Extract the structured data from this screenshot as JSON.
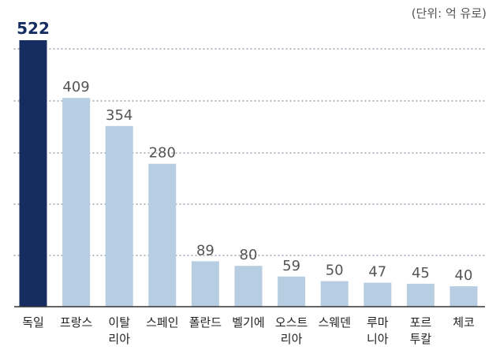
{
  "unit_label": "(단위: 억 유로)",
  "colors": {
    "highlight": "#162d62",
    "bar": "#b7cde2",
    "grid": "#9aa5b3",
    "axis": "#333333",
    "value_text": "#555555",
    "highlight_text": "#162d62",
    "category_text": "#222222"
  },
  "chart_data": {
    "type": "bar",
    "title": "",
    "xlabel": "",
    "ylabel": "",
    "unit": "(단위: 억 유로)",
    "ylim": [
      0,
      522
    ],
    "grid": "horizontal dotted",
    "highlight_index": 0,
    "categories": [
      [
        "독일"
      ],
      [
        "프랑스"
      ],
      [
        "이탈",
        "리아"
      ],
      [
        "스페인"
      ],
      [
        "폴란드"
      ],
      [
        "벨기에"
      ],
      [
        "오스트",
        "리아"
      ],
      [
        "스웨덴"
      ],
      [
        "루마",
        "니아"
      ],
      [
        "포르",
        "투칼"
      ],
      [
        "체코"
      ]
    ],
    "values": [
      522,
      409,
      354,
      280,
      89,
      80,
      59,
      50,
      47,
      45,
      40
    ]
  }
}
